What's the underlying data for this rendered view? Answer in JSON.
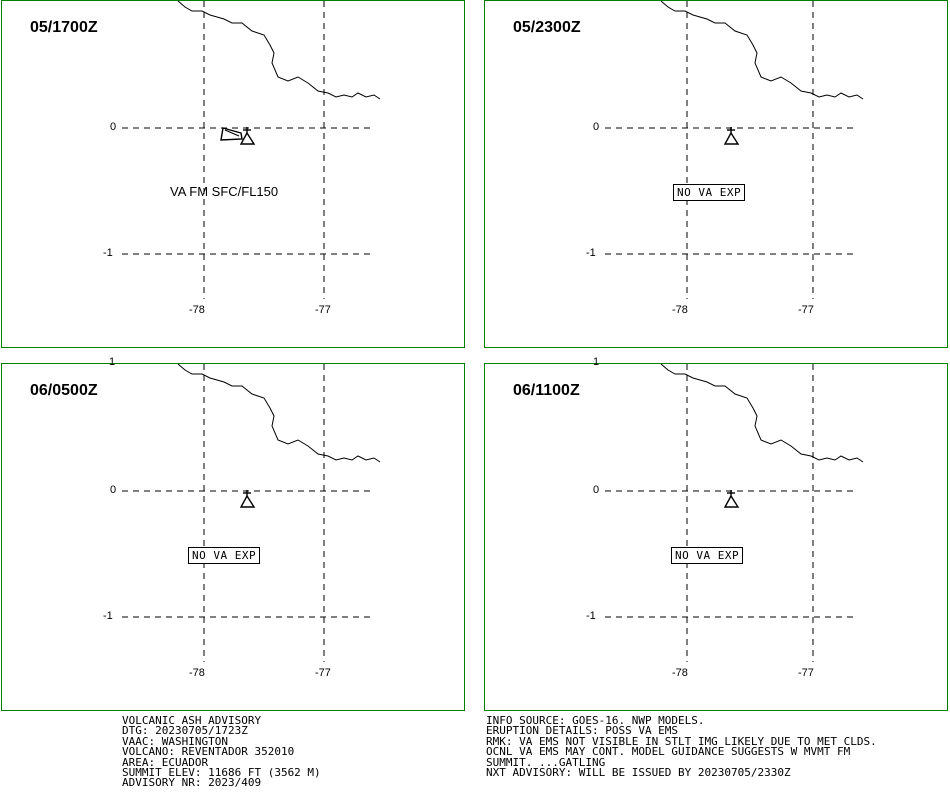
{
  "panels": [
    {
      "title": "05/1700Z",
      "annotation": "VA FM SFC/FL150",
      "boxed": false
    },
    {
      "title": "05/2300Z",
      "annotation": "NO VA EXP",
      "boxed": true
    },
    {
      "title": "06/0500Z",
      "annotation": "NO VA EXP",
      "boxed": true
    },
    {
      "title": "06/1100Z",
      "annotation": "NO VA EXP",
      "boxed": true
    }
  ],
  "grid": {
    "lat_labels": [
      "1",
      "0",
      "-1"
    ],
    "lon_labels": [
      "-78",
      "-77"
    ]
  },
  "advisory_left": [
    "VOLCANIC ASH ADVISORY",
    "DTG: 20230705/1723Z",
    "VAAC: WASHINGTON",
    "VOLCANO: REVENTADOR 352010",
    "AREA: ECUADOR",
    "SUMMIT ELEV: 11686 FT (3562 M)",
    "ADVISORY NR: 2023/409"
  ],
  "advisory_right": [
    "INFO SOURCE: GOES-16. NWP MODELS.",
    "ERUPTION DETAILS: POSS VA EMS",
    "RMK: VA EMS NOT VISIBLE IN STLT IMG LIKELY DUE TO MET CLDS.",
    "OCNL VA EMS MAY CONT. MODEL GUIDANCE SUGGESTS W MVMT FM",
    "SUMMIT. ...GATLING",
    "NXT ADVISORY: WILL BE ISSUED BY 20230705/2330Z"
  ],
  "colors": {
    "panel_border": "#008000",
    "grid": "#000000"
  }
}
